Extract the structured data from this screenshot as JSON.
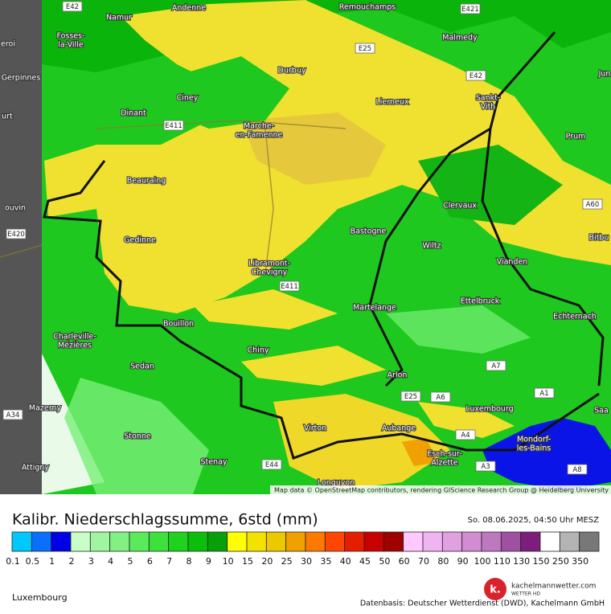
{
  "map": {
    "places": [
      "Namur",
      "Andenne",
      "Remouchamps",
      [
        "Fosses-",
        "la-Ville"
      ],
      "Malmedy",
      "Durbuy",
      "Ciney",
      "Dinant",
      "Lierneux",
      [
        "Sankt-",
        "Vith"
      ],
      [
        "Marche-",
        "en-Famenne"
      ],
      "Prum",
      "Beauraing",
      "Clervaux",
      "Gedinne",
      "Bastogne",
      "Wiltz",
      "Bitbu",
      "Vianden",
      [
        "Libramont-",
        "Chevigny"
      ],
      "Martelange",
      "Ettelbruck",
      "Echternach",
      "Bouillon",
      [
        "Charleville-",
        "Mézières"
      ],
      "Chiny",
      "Sedan",
      "Arlon",
      "Mazerny",
      "Luxembourg",
      "Virton",
      "Aubange",
      "Stonne",
      [
        "Mondorf-",
        "les-Bains"
      ],
      [
        "Esch-sur-",
        "Alzette"
      ],
      "Stenay",
      "Attigny",
      "Longuyon",
      "Saa",
      "Jun",
      "eroi",
      "Gerpinnes",
      "urt",
      "ouvin"
    ],
    "roads": [
      "E42",
      "E421",
      "E25",
      "E42",
      "E411",
      "A60",
      "E420",
      "E411",
      "A7",
      "E25",
      "A6",
      "A1",
      "A34",
      "A4",
      "E44",
      "A3",
      "A8"
    ],
    "attribution": "Map data © OpenStreetMap contributors, rendering GIScience Research Group @ Heidelberg University"
  },
  "legend": {
    "title": "Kalibr. Niederschlagssumme, 6std (mm)",
    "timestamp": "So. 08.06.2025, 04:50 Uhr MESZ",
    "labels": [
      0.1,
      0.5,
      1,
      2,
      3,
      4,
      5,
      6,
      7,
      8,
      9,
      10,
      15,
      20,
      25,
      30,
      35,
      40,
      45,
      50,
      60,
      70,
      80,
      90,
      100,
      110,
      130,
      150,
      250,
      350
    ]
  },
  "footer": {
    "region": "Luxembourg",
    "logo_letter": "k.",
    "logo_site": "kachelmannwetter.com",
    "logo_sub": "WETTER HD",
    "source": "Datenbasis: Deutscher Wetterdienst (DWD), Kachelmann GmbH"
  }
}
